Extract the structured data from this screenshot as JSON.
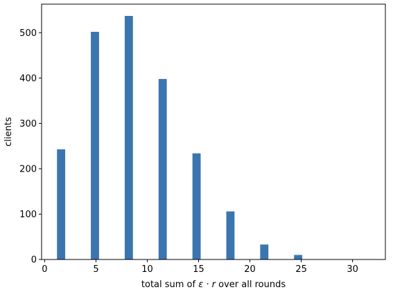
{
  "chart_data": {
    "type": "bar",
    "title": "",
    "xlabel_prefix": "total sum of ",
    "xlabel_math": "ε · r",
    "xlabel_suffix": " over all rounds",
    "ylabel": "clients",
    "x": [
      1.6,
      4.9,
      8.2,
      11.5,
      14.8,
      18.1,
      21.4,
      24.7,
      28.0,
      31.3
    ],
    "values": [
      243,
      502,
      537,
      398,
      234,
      106,
      33,
      10,
      0,
      0
    ],
    "bin_width": 0.8,
    "xlim": [
      -0.3,
      33.2
    ],
    "ylim": [
      0,
      563
    ],
    "xticks": [
      "0",
      "5",
      "10",
      "15",
      "20",
      "25",
      "30"
    ],
    "yticks": [
      "0",
      "100",
      "200",
      "300",
      "400",
      "500"
    ],
    "bar_color": "#3b75af",
    "grid": false,
    "legend": "none"
  }
}
